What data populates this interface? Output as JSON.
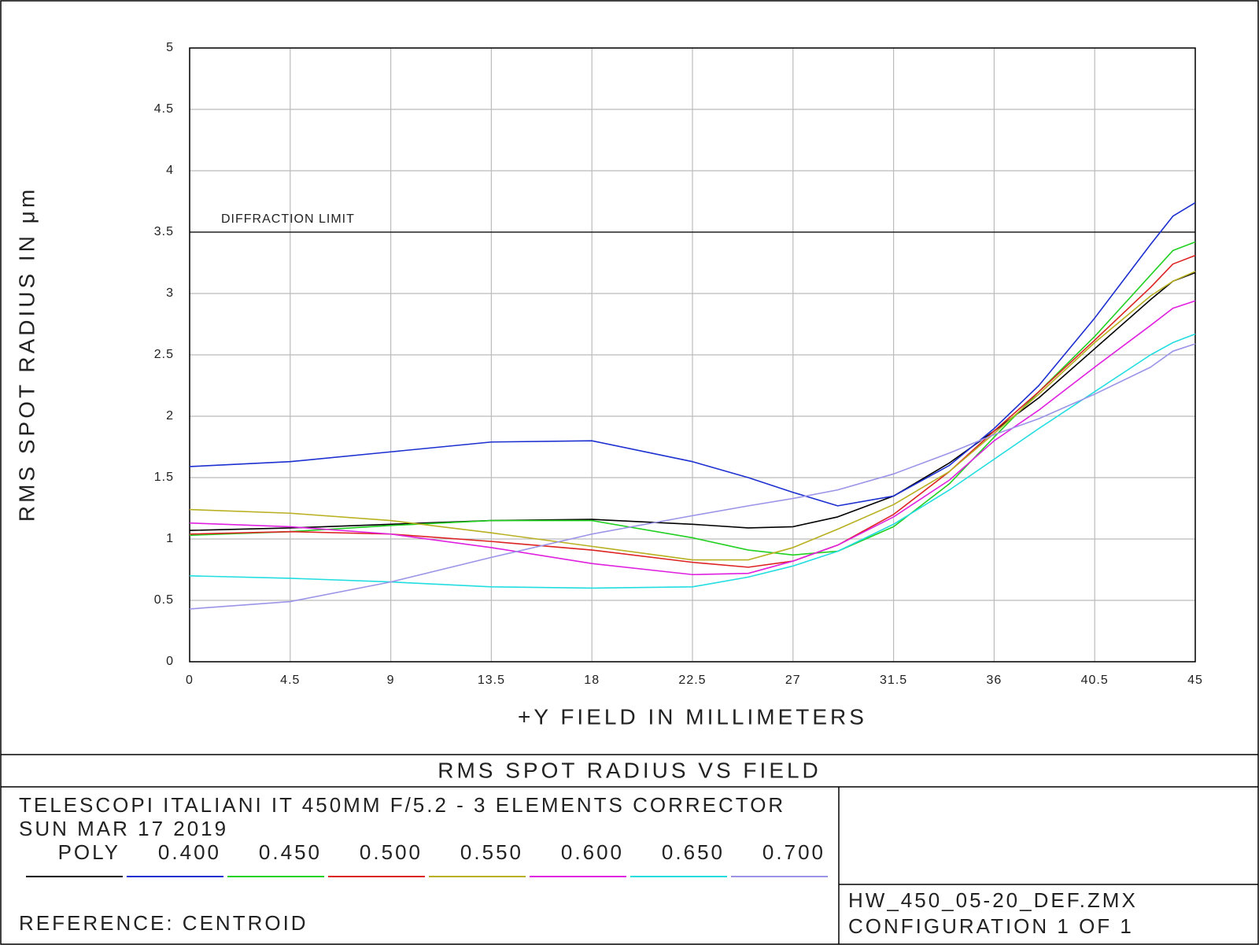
{
  "chart_data": {
    "type": "line",
    "title": "RMS SPOT RADIUS VS FIELD",
    "x_label": "+Y FIELD IN MILLIMETERS",
    "y_label": "RMS SPOT RADIUS IN μm",
    "x": [
      0,
      4.5,
      9,
      13.5,
      18,
      22.5,
      25,
      27,
      29,
      31.5,
      34,
      36,
      38,
      40.5,
      43,
      44,
      45
    ],
    "series": [
      {
        "name": "POLY",
        "color": "#000000",
        "values": [
          1.07,
          1.09,
          1.12,
          1.15,
          1.16,
          1.12,
          1.09,
          1.1,
          1.18,
          1.35,
          1.62,
          1.88,
          2.15,
          2.55,
          2.95,
          3.1,
          3.17
        ]
      },
      {
        "name": "0.400",
        "color": "#1c2fd0",
        "values": [
          1.59,
          1.63,
          1.71,
          1.79,
          1.8,
          1.63,
          1.5,
          1.38,
          1.27,
          1.35,
          1.6,
          1.9,
          2.25,
          2.8,
          3.4,
          3.63,
          3.74
        ]
      },
      {
        "name": "0.450",
        "color": "#22d022",
        "values": [
          1.03,
          1.06,
          1.11,
          1.15,
          1.15,
          1.01,
          0.91,
          0.87,
          0.9,
          1.1,
          1.45,
          1.83,
          2.2,
          2.65,
          3.15,
          3.35,
          3.42
        ]
      },
      {
        "name": "0.500",
        "color": "#dd2222",
        "values": [
          1.04,
          1.06,
          1.04,
          0.98,
          0.91,
          0.81,
          0.77,
          0.82,
          0.95,
          1.2,
          1.55,
          1.88,
          2.2,
          2.62,
          3.05,
          3.24,
          3.31
        ]
      },
      {
        "name": "0.550",
        "color": "#b8b020",
        "values": [
          1.24,
          1.21,
          1.15,
          1.05,
          0.94,
          0.83,
          0.83,
          0.93,
          1.08,
          1.28,
          1.55,
          1.86,
          2.18,
          2.6,
          2.98,
          3.1,
          3.18
        ]
      },
      {
        "name": "0.600",
        "color": "#e020e0",
        "values": [
          1.13,
          1.1,
          1.04,
          0.93,
          0.8,
          0.71,
          0.72,
          0.82,
          0.95,
          1.18,
          1.48,
          1.8,
          2.05,
          2.4,
          2.74,
          2.88,
          2.94
        ]
      },
      {
        "name": "0.650",
        "color": "#22dde0",
        "values": [
          0.7,
          0.68,
          0.65,
          0.61,
          0.6,
          0.61,
          0.69,
          0.78,
          0.9,
          1.12,
          1.4,
          1.65,
          1.9,
          2.2,
          2.5,
          2.6,
          2.67
        ]
      },
      {
        "name": "0.700",
        "color": "#9a94e8",
        "values": [
          0.43,
          0.49,
          0.65,
          0.85,
          1.04,
          1.19,
          1.27,
          1.33,
          1.4,
          1.53,
          1.7,
          1.85,
          1.98,
          2.18,
          2.4,
          2.53,
          2.59
        ]
      }
    ],
    "reference_line": {
      "label": "DIFFRACTION LIMIT",
      "value": 3.5
    },
    "xlim": [
      0,
      45
    ],
    "xticks": [
      0,
      4.5,
      9,
      13.5,
      18,
      22.5,
      27,
      31.5,
      36,
      40.5,
      45
    ],
    "ylim": [
      0,
      5
    ],
    "yticks": [
      0,
      0.5,
      1,
      1.5,
      2,
      2.5,
      3,
      3.5,
      4,
      4.5,
      5
    ],
    "grid": true
  },
  "footer": {
    "description": "TELESCOPI ITALIANI IT 450MM F/5.2  -  3 ELEMENTS CORRECTOR",
    "date": "SUN MAR 17 2019",
    "reference": "REFERENCE: CENTROID",
    "file": "HW_450_05-20_DEF.ZMX",
    "configuration": "CONFIGURATION 1 OF 1"
  }
}
